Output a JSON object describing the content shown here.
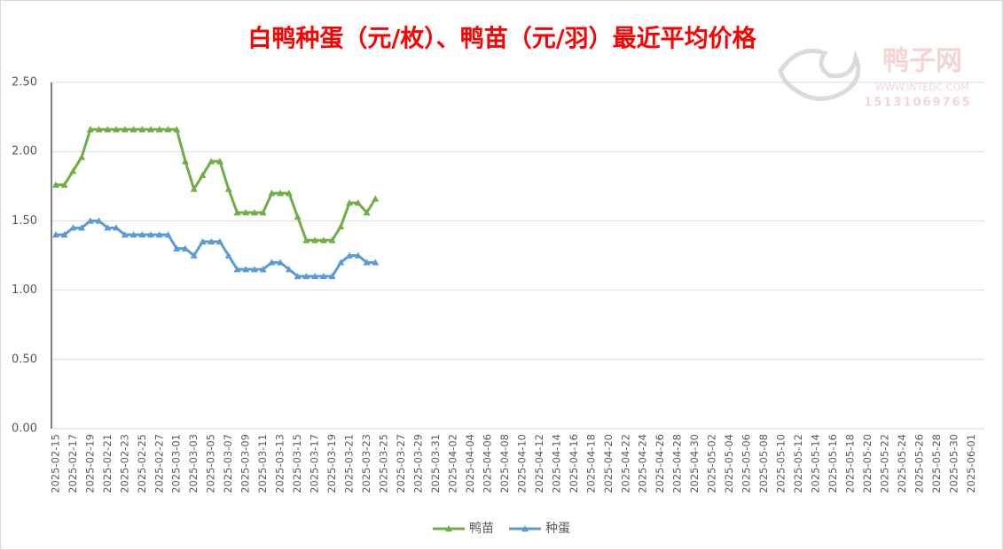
{
  "chart_data": {
    "type": "line",
    "title": "白鸭种蛋（元/枚）、鸭苗（元/羽）最近平均价格",
    "watermark": {
      "brand": "鸭子网",
      "url": "WWW.INTEDC.COM",
      "phone": "15131069765"
    },
    "categories": [
      "2025-02-15",
      null,
      "2025-02-17",
      null,
      "2025-02-19",
      null,
      "2025-02-21",
      null,
      "2025-02-23",
      null,
      "2025-02-25",
      null,
      "2025-02-27",
      null,
      "2025-03-01",
      null,
      "2025-03-03",
      null,
      "2025-03-05",
      null,
      "2025-03-07",
      null,
      "2025-03-09",
      null,
      "2025-03-11",
      null,
      "2025-03-13",
      null,
      "2025-03-15",
      null,
      "2025-03-17",
      null,
      "2025-03-19",
      null,
      "2025-03-21",
      null,
      "2025-03-23",
      null,
      "2025-03-25",
      null,
      "2025-03-27",
      null,
      "2025-03-29",
      null,
      "2025-03-31",
      null,
      "2025-04-02",
      null,
      "2025-04-04",
      null,
      "2025-04-06",
      null,
      "2025-04-08",
      null,
      "2025-04-10",
      null,
      "2025-04-12",
      null,
      "2025-04-14",
      null,
      "2025-04-16",
      null,
      "2025-04-18",
      null,
      "2025-04-20",
      null,
      "2025-04-22",
      null,
      "2025-04-24",
      null,
      "2025-04-26",
      null,
      "2025-04-28",
      null,
      "2025-04-30",
      null,
      "2025-05-02",
      null,
      "2025-05-04",
      null,
      "2025-05-06",
      null,
      "2025-05-08",
      null,
      "2025-05-10",
      null,
      "2025-05-12",
      null,
      "2025-05-14",
      null,
      "2025-05-16",
      null,
      "2025-05-18",
      null,
      "2025-05-20",
      null,
      "2025-05-22",
      null,
      "2025-05-24",
      null,
      "2025-05-26",
      null,
      "2025-05-28",
      null,
      "2025-05-30",
      null,
      "2025-06-01",
      null
    ],
    "series": [
      {
        "name": "鸭苗",
        "color": "#70ad47",
        "values": [
          1.76,
          1.76,
          1.86,
          1.96,
          2.16,
          2.16,
          2.16,
          2.16,
          2.16,
          2.16,
          2.16,
          2.16,
          2.16,
          2.16,
          2.16,
          1.93,
          1.73,
          1.83,
          1.93,
          1.93,
          1.73,
          1.56,
          1.56,
          1.56,
          1.56,
          1.7,
          1.7,
          1.7,
          1.53,
          1.36,
          1.36,
          1.36,
          1.36,
          1.46,
          1.63,
          1.63,
          1.56,
          1.66,
          null,
          null,
          null,
          null,
          null,
          null,
          null,
          null,
          null,
          null,
          null,
          null,
          null,
          null,
          null,
          null,
          null,
          null,
          null,
          null,
          null,
          null,
          null,
          null,
          null,
          null,
          null,
          null,
          null,
          null,
          null,
          null,
          null,
          null,
          null,
          null,
          null,
          null,
          null,
          null,
          null,
          null,
          null,
          null,
          null,
          null,
          null,
          null,
          null,
          null,
          null,
          null,
          null,
          null,
          null,
          null,
          null,
          null,
          null,
          null,
          null,
          null,
          null,
          null,
          null,
          null,
          null,
          null,
          null,
          null
        ]
      },
      {
        "name": "种蛋",
        "color": "#5b9bd5",
        "values": [
          1.4,
          1.4,
          1.45,
          1.45,
          1.5,
          1.5,
          1.45,
          1.45,
          1.4,
          1.4,
          1.4,
          1.4,
          1.4,
          1.4,
          1.3,
          1.3,
          1.25,
          1.35,
          1.35,
          1.35,
          1.25,
          1.15,
          1.15,
          1.15,
          1.15,
          1.2,
          1.2,
          1.15,
          1.1,
          1.1,
          1.1,
          1.1,
          1.1,
          1.2,
          1.25,
          1.25,
          1.2,
          1.2,
          null,
          null,
          null,
          null,
          null,
          null,
          null,
          null,
          null,
          null,
          null,
          null,
          null,
          null,
          null,
          null,
          null,
          null,
          null,
          null,
          null,
          null,
          null,
          null,
          null,
          null,
          null,
          null,
          null,
          null,
          null,
          null,
          null,
          null,
          null,
          null,
          null,
          null,
          null,
          null,
          null,
          null,
          null,
          null,
          null,
          null,
          null,
          null,
          null,
          null,
          null,
          null,
          null,
          null,
          null,
          null,
          null,
          null,
          null,
          null,
          null,
          null,
          null,
          null,
          null,
          null,
          null,
          null,
          null,
          null
        ]
      }
    ],
    "ylim": [
      0,
      2.5
    ],
    "yticks": [
      {
        "value": 0,
        "label": "0.00"
      },
      {
        "value": 0.5,
        "label": "0.50"
      },
      {
        "value": 1,
        "label": "1.00"
      },
      {
        "value": 1.5,
        "label": "1.50"
      },
      {
        "value": 2,
        "label": "2.00"
      },
      {
        "value": 2.5,
        "label": "2.50"
      }
    ],
    "grid": true,
    "legend": "bottom"
  }
}
